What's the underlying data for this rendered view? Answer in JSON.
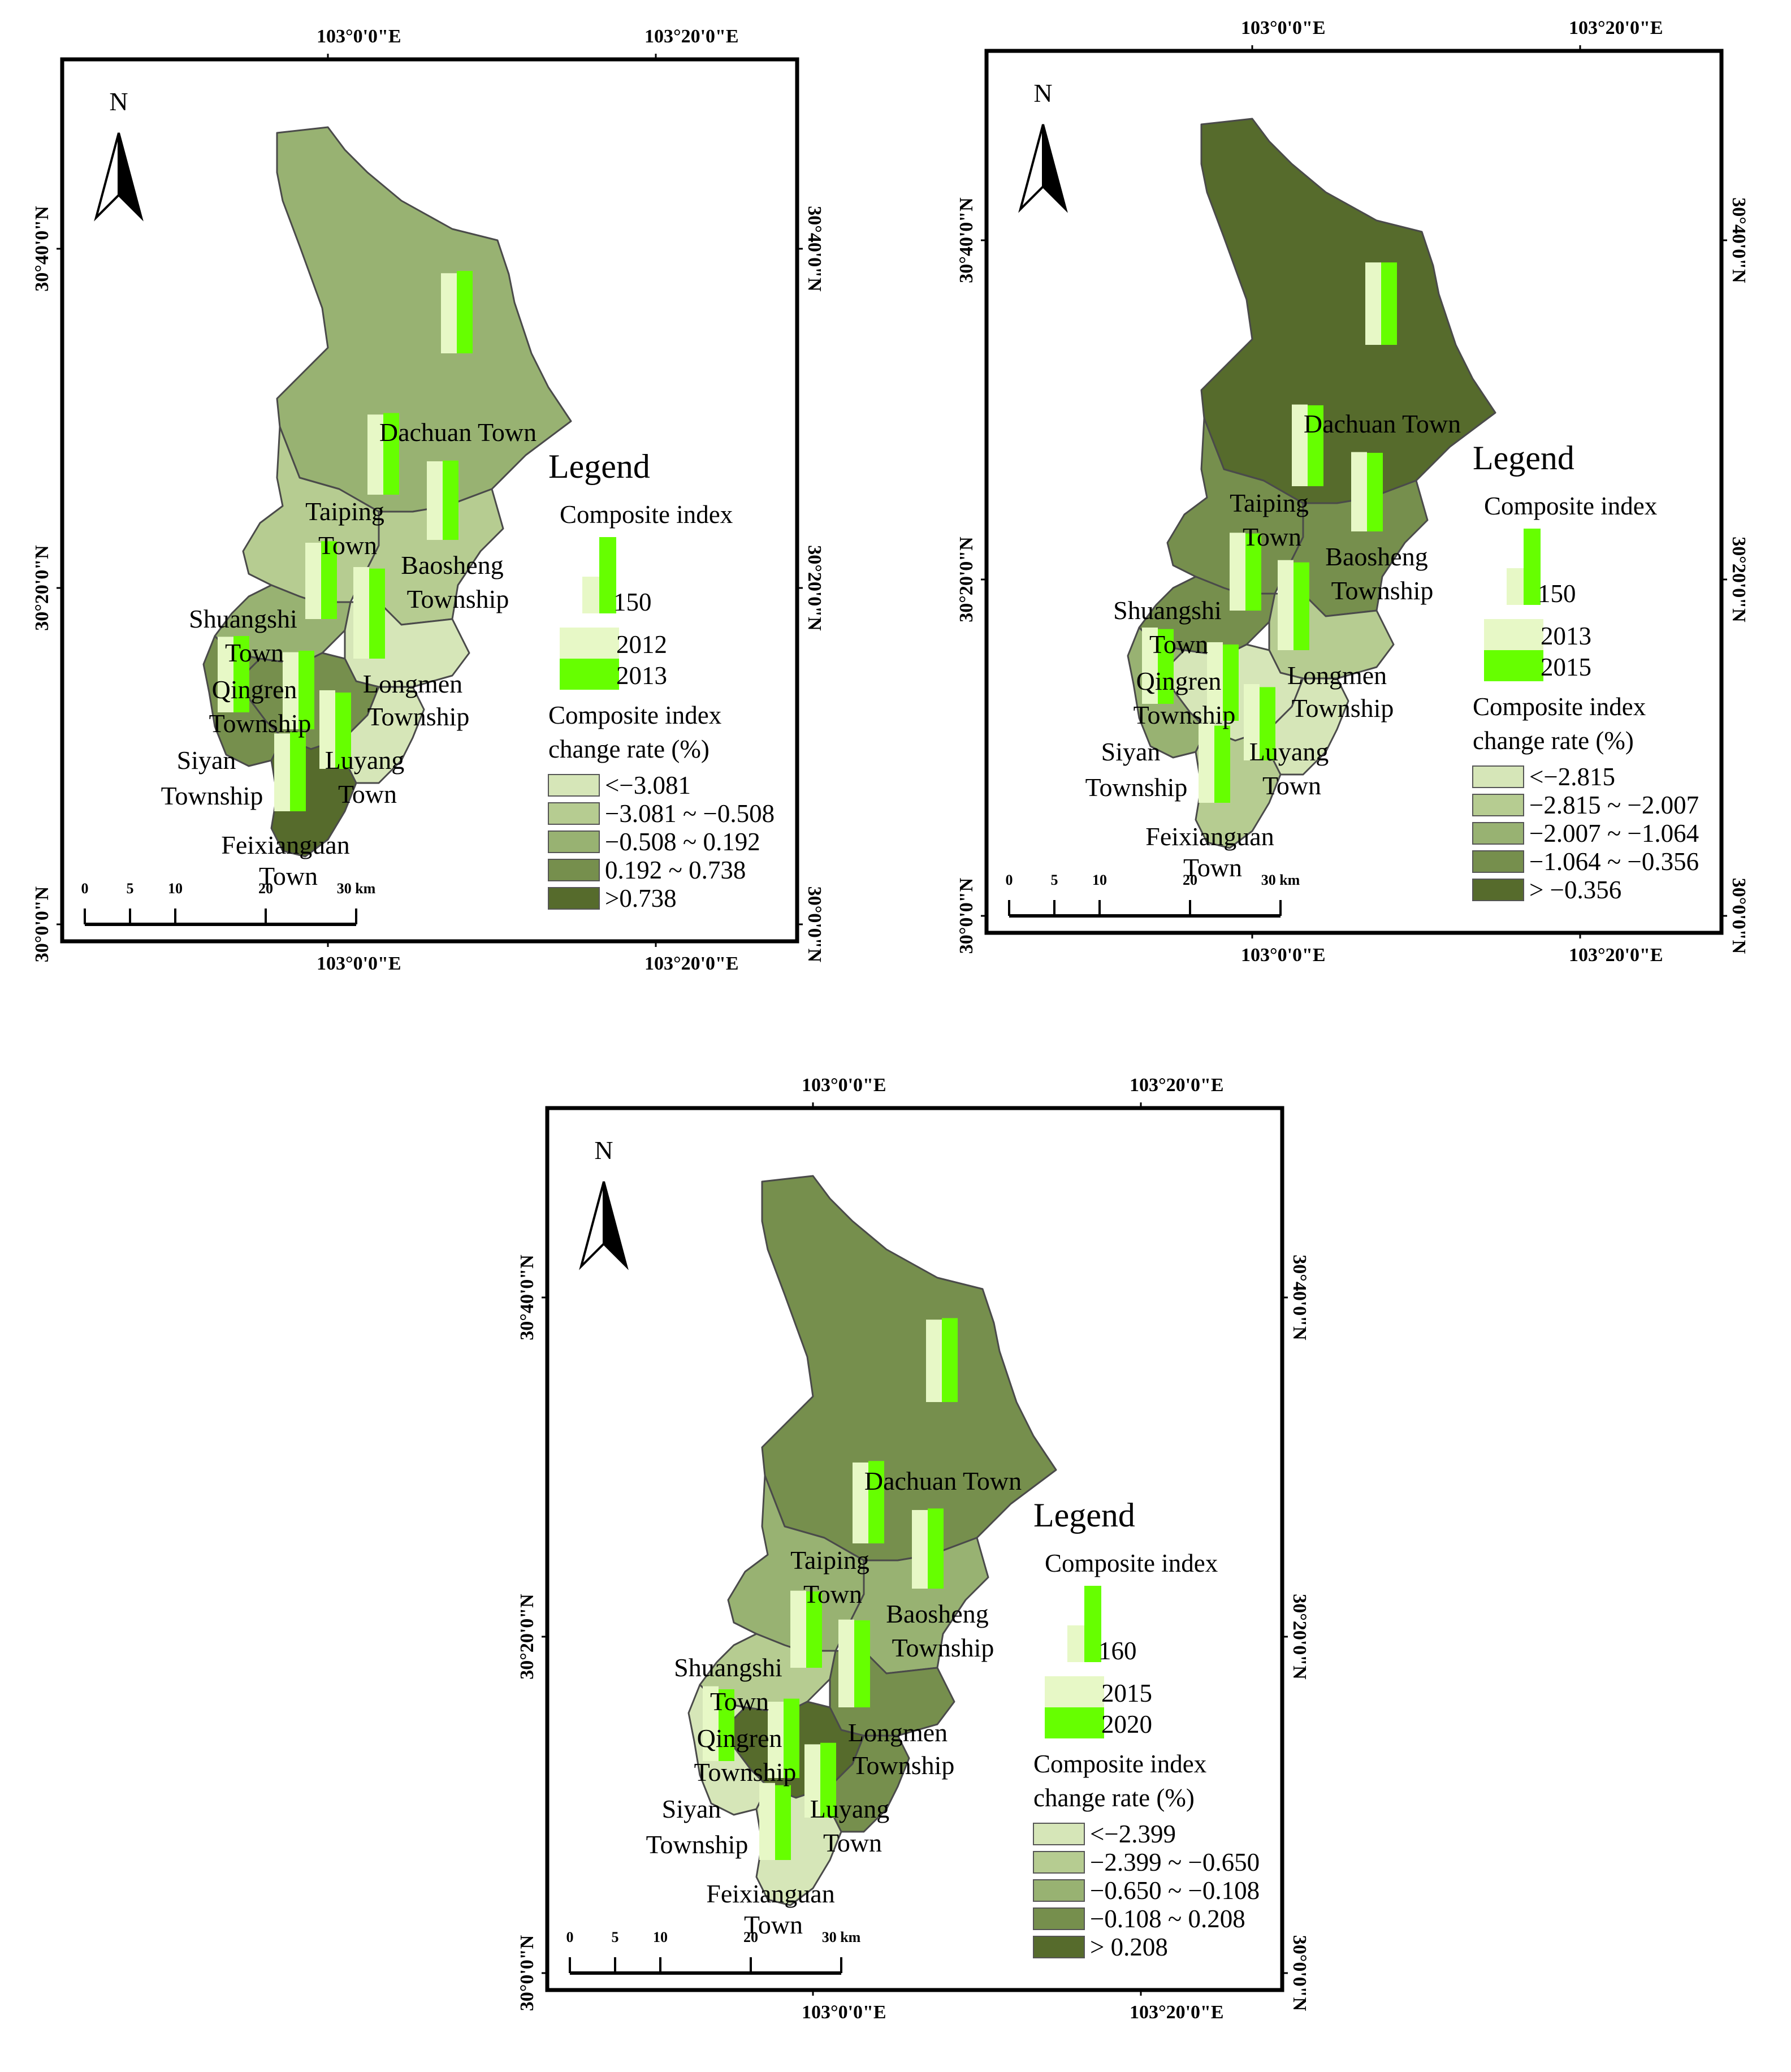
{
  "colors": {
    "fill_class_1": "#d6e6b8",
    "fill_class_2": "#b6cc91",
    "fill_class_3": "#98b272",
    "fill_class_4": "#768f4d",
    "fill_class_5": "#566b2c",
    "bar_light": "#e7f8c6",
    "bar_bright": "#66ff00",
    "boundary": "#4a4a4a"
  },
  "north_label": "N",
  "coord_labels": {
    "lon_103_00": "103°0'0\"E",
    "lon_103_20": "103°20'0\"E",
    "lat_30_40": "30°40'0\"N",
    "lat_30_20": "30°20'0\"N",
    "lat_30_00": "30°0'0\"N"
  },
  "scale_bar": {
    "ticks": [
      "0",
      "5",
      "10",
      "20",
      "30 km"
    ]
  },
  "townships": {
    "dachuan": "Dachuan Town",
    "taiping_1": "Taiping",
    "taiping_2": "Town",
    "baosheng_1": "Baosheng",
    "baosheng_2": "Township",
    "shuangshi_1": "Shuangshi",
    "shuangshi_2": "Town",
    "qingren_1": "Qingren",
    "qingren_2": "Township",
    "longmen_1": "Longmen",
    "longmen_2": "Township",
    "siyan_1": "Siyan",
    "siyan_2": "Township",
    "luyang_1": "Luyang",
    "luyang_2": "Town",
    "feixianguan_1": "Feixianguan",
    "feixianguan_2": "Town"
  },
  "maps": [
    {
      "legend_title": "Legend",
      "composite_index_label": "Composite index",
      "bar_scale_value": "150",
      "year_a": "2012",
      "year_b": "2013",
      "change_rate_label_1": "Composite index",
      "change_rate_label_2": "change rate (%)",
      "classes": [
        "<−3.081",
        "−3.081 ~ −0.508",
        "−0.508 ~ 0.192",
        "0.192 ~ 0.738",
        ">0.738"
      ],
      "township_class": {
        "dachuan": 3,
        "taiping": 2,
        "baosheng": 2,
        "shuangshi": 3,
        "qingren": 4,
        "longmen": 1,
        "siyan": 4,
        "luyang": 1,
        "feixianguan": 5
      },
      "index_values": {
        "dachuan": [
          105,
          108
        ],
        "taiping": [
          105,
          107
        ],
        "baosheng": [
          103,
          104
        ],
        "shuangshi": [
          100,
          102
        ],
        "qingren": [
          101,
          103
        ],
        "longmen": [
          120,
          118
        ],
        "siyan": [
          99,
          100
        ],
        "luyang": [
          103,
          100
        ],
        "feixianguan": [
          102,
          104
        ]
      }
    },
    {
      "legend_title": "Legend",
      "composite_index_label": "Composite index",
      "bar_scale_value": "150",
      "year_a": "2013",
      "year_b": "2015",
      "change_rate_label_1": "Composite index",
      "change_rate_label_2": "change rate (%)",
      "classes": [
        "<−2.815",
        "−2.815 ~ −2.007",
        "−2.007 ~ −1.064",
        "−1.064 ~ −0.356",
        "> −0.356"
      ],
      "township_class": {
        "dachuan": 5,
        "taiping": 4,
        "baosheng": 4,
        "shuangshi": 4,
        "qingren": 1,
        "longmen": 2,
        "siyan": 3,
        "luyang": 1,
        "feixianguan": 2
      },
      "index_values": {
        "dachuan": [
          108,
          108
        ],
        "taiping": [
          107,
          106
        ],
        "baosheng": [
          104,
          103
        ],
        "shuangshi": [
          102,
          101
        ],
        "qingren": [
          103,
          100
        ],
        "longmen": [
          118,
          115
        ],
        "siyan": [
          100,
          98
        ],
        "luyang": [
          100,
          96
        ],
        "feixianguan": [
          104,
          101
        ]
      }
    },
    {
      "legend_title": "Legend",
      "composite_index_label": "Composite index",
      "bar_scale_value": "160",
      "year_a": "2015",
      "year_b": "2020",
      "change_rate_label_1": "Composite index",
      "change_rate_label_2": "change rate (%)",
      "classes": [
        "<−2.399",
        "−2.399 ~ −0.650",
        "−0.650 ~ −0.108",
        "−0.108 ~ 0.208",
        "> 0.208"
      ],
      "township_class": {
        "dachuan": 4,
        "taiping": 3,
        "baosheng": 3,
        "shuangshi": 2,
        "qingren": 5,
        "longmen": 4,
        "siyan": 1,
        "luyang": 4,
        "feixianguan": 1
      },
      "index_values": {
        "dachuan": [
          108,
          110
        ],
        "taiping": [
          106,
          108
        ],
        "baosheng": [
          103,
          105
        ],
        "shuangshi": [
          101,
          100
        ],
        "qingren": [
          100,
          104
        ],
        "longmen": [
          115,
          114
        ],
        "siyan": [
          98,
          94
        ],
        "luyang": [
          96,
          98
        ],
        "feixianguan": [
          101,
          98
        ]
      }
    }
  ]
}
